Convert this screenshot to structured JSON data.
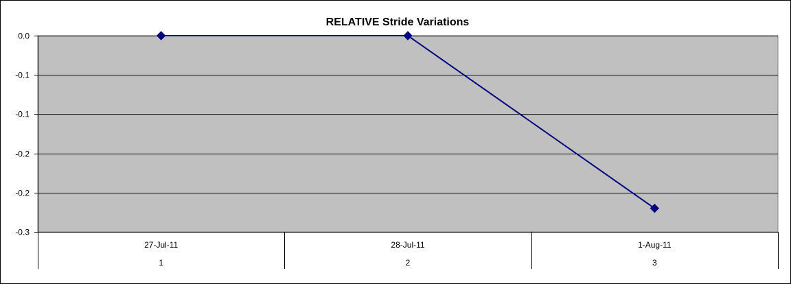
{
  "chart_data": {
    "type": "line",
    "title": "RELATIVE Stride Variations",
    "categories": [
      "27-Jul-11",
      "28-Jul-11",
      "1-Aug-11"
    ],
    "category_index_labels": [
      "1",
      "2",
      "3"
    ],
    "series": [
      {
        "values": [
          0.0,
          0.0,
          -0.22
        ],
        "color": "#000080",
        "marker": "diamond"
      }
    ],
    "ylim": [
      -0.25,
      0.0
    ],
    "y_ticks": [
      0.0,
      -0.05,
      -0.1,
      -0.15,
      -0.2,
      -0.25
    ],
    "y_tick_labels": [
      "0.0",
      "-0.1",
      "-0.1",
      "-0.2",
      "-0.2",
      "-0.3"
    ],
    "grid": true,
    "plot_background": "#c0c0c0",
    "legend": "none"
  }
}
